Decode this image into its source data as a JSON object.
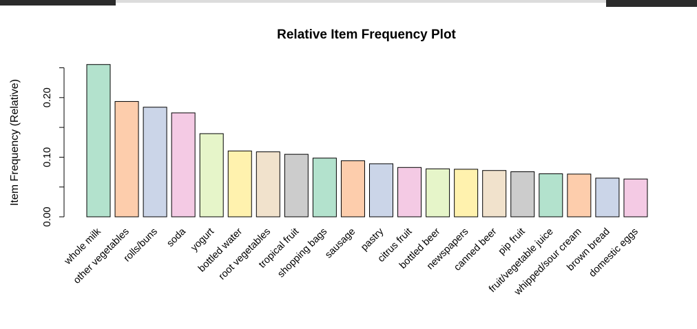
{
  "chart_data": {
    "type": "bar",
    "title": "Relative Item Frequency Plot",
    "xlabel": "",
    "ylabel": "Item Frequency (Relative)",
    "ylim": [
      0,
      0.25
    ],
    "yticks": [
      0.0,
      0.1,
      0.2
    ],
    "ytick_labels": [
      "0.00",
      "0.10",
      "0.20"
    ],
    "grid": false,
    "categories": [
      "whole milk",
      "other vegetables",
      "rolls/buns",
      "soda",
      "yogurt",
      "bottled water",
      "root vegetables",
      "tropical fruit",
      "shopping bags",
      "sausage",
      "pastry",
      "citrus fruit",
      "bottled beer",
      "newspapers",
      "canned beer",
      "pip fruit",
      "fruit/vegetable juice",
      "whipped/sour cream",
      "brown bread",
      "domestic eggs"
    ],
    "values": [
      0.2555,
      0.1935,
      0.1839,
      0.1744,
      0.1395,
      0.1105,
      0.109,
      0.1049,
      0.0985,
      0.094,
      0.089,
      0.0828,
      0.0805,
      0.0798,
      0.0777,
      0.0756,
      0.0722,
      0.0717,
      0.0649,
      0.0634
    ],
    "colors": [
      "#b3e2cd",
      "#fdcdac",
      "#cbd5e8",
      "#f4cae4",
      "#e6f5c9",
      "#fff2ae",
      "#f1e2cc",
      "#cccccc"
    ]
  }
}
